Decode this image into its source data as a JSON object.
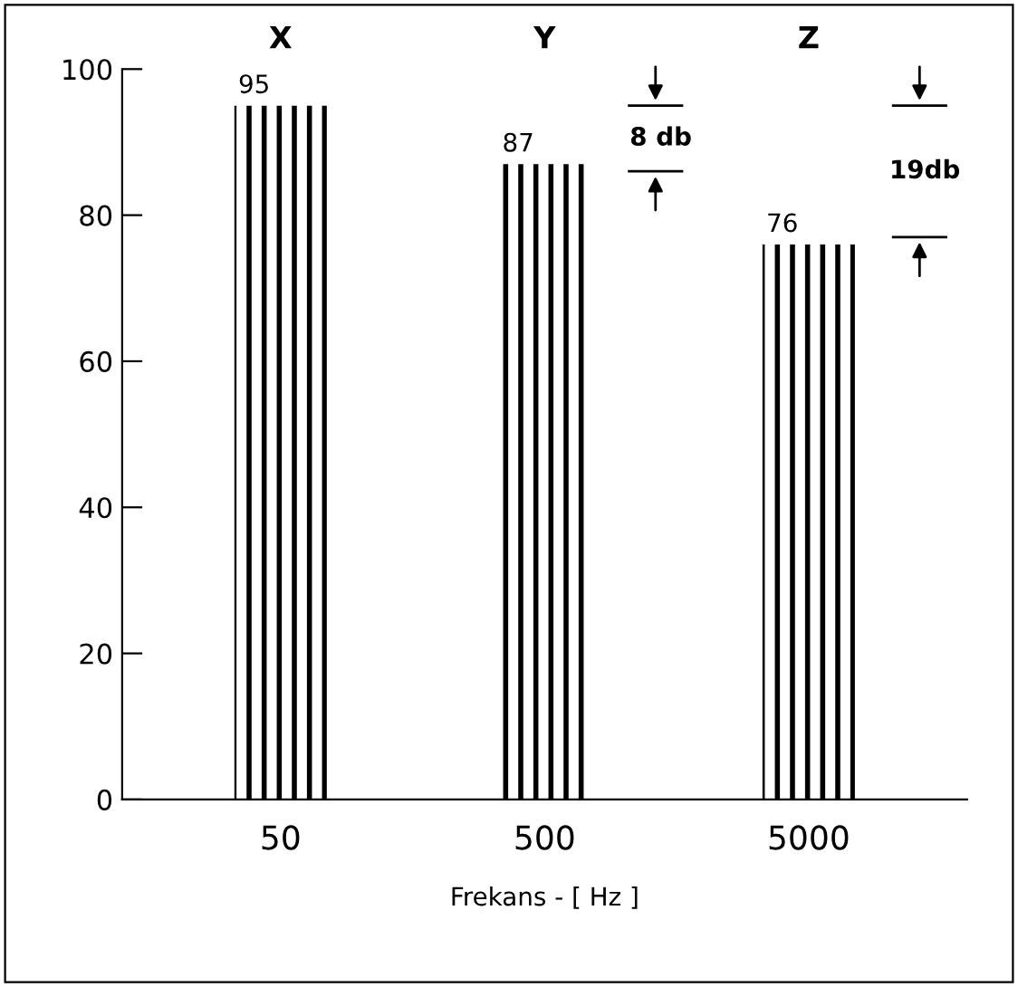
{
  "chart_data": {
    "type": "bar",
    "xlabel": "Frekans - [ Hz ]",
    "categories": [
      "50",
      "500",
      "5000"
    ],
    "values": [
      95,
      87,
      76
    ],
    "color": "#000000",
    "data_labels": true,
    "ylim": [
      0,
      100
    ],
    "yticks": [
      0,
      20,
      40,
      60,
      80,
      100
    ],
    "grid": false,
    "annotations": [
      "X",
      "Y",
      "Z",
      "8 db",
      "19db"
    ]
  }
}
